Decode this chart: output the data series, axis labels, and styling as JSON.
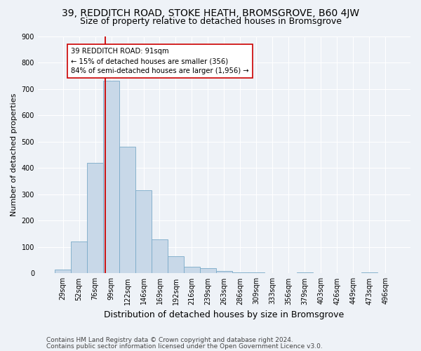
{
  "title1": "39, REDDITCH ROAD, STOKE HEATH, BROMSGROVE, B60 4JW",
  "title2": "Size of property relative to detached houses in Bromsgrove",
  "xlabel": "Distribution of detached houses by size in Bromsgrove",
  "ylabel": "Number of detached properties",
  "categories": [
    "29sqm",
    "52sqm",
    "76sqm",
    "99sqm",
    "122sqm",
    "146sqm",
    "169sqm",
    "192sqm",
    "216sqm",
    "239sqm",
    "263sqm",
    "286sqm",
    "309sqm",
    "333sqm",
    "356sqm",
    "379sqm",
    "403sqm",
    "426sqm",
    "449sqm",
    "473sqm",
    "496sqm"
  ],
  "bar_heights": [
    15,
    120,
    420,
    730,
    480,
    315,
    130,
    65,
    25,
    20,
    10,
    5,
    5,
    0,
    0,
    5,
    0,
    0,
    0,
    5,
    0
  ],
  "bar_color": "#c8d8e8",
  "bar_edge_color": "#7aaac8",
  "vline_x_data": 2.65,
  "vline_color": "#cc0000",
  "annotation_text": "39 REDDITCH ROAD: 91sqm\n← 15% of detached houses are smaller (356)\n84% of semi-detached houses are larger (1,956) →",
  "annotation_box_color": "#ffffff",
  "annotation_box_edge": "#cc0000",
  "ylim": [
    0,
    900
  ],
  "yticks": [
    0,
    100,
    200,
    300,
    400,
    500,
    600,
    700,
    800,
    900
  ],
  "footer1": "Contains HM Land Registry data © Crown copyright and database right 2024.",
  "footer2": "Contains public sector information licensed under the Open Government Licence v3.0.",
  "background_color": "#eef2f7",
  "grid_color": "#ffffff",
  "title1_fontsize": 10,
  "title2_fontsize": 9,
  "ylabel_fontsize": 8,
  "xlabel_fontsize": 9,
  "tick_fontsize": 7,
  "footer_fontsize": 6.5
}
